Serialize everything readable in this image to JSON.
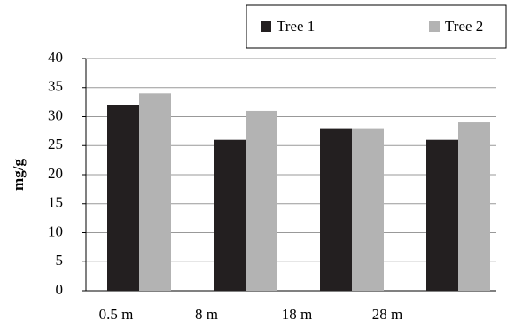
{
  "chart_data": {
    "type": "bar",
    "y_label": "mg/g",
    "categories": [
      "0.5 m",
      "8 m",
      "18 m",
      "28 m"
    ],
    "series": [
      {
        "name": "Tree 1",
        "color": "#231f20",
        "values": [
          32,
          26,
          28,
          26
        ]
      },
      {
        "name": "Tree 2",
        "color": "#b3b3b3",
        "values": [
          34,
          31,
          28,
          29
        ]
      }
    ],
    "ylim": [
      0,
      40
    ],
    "yticks": [
      0,
      5,
      10,
      15,
      20,
      25,
      30,
      35,
      40
    ],
    "grid": true,
    "legend": "top-right"
  }
}
